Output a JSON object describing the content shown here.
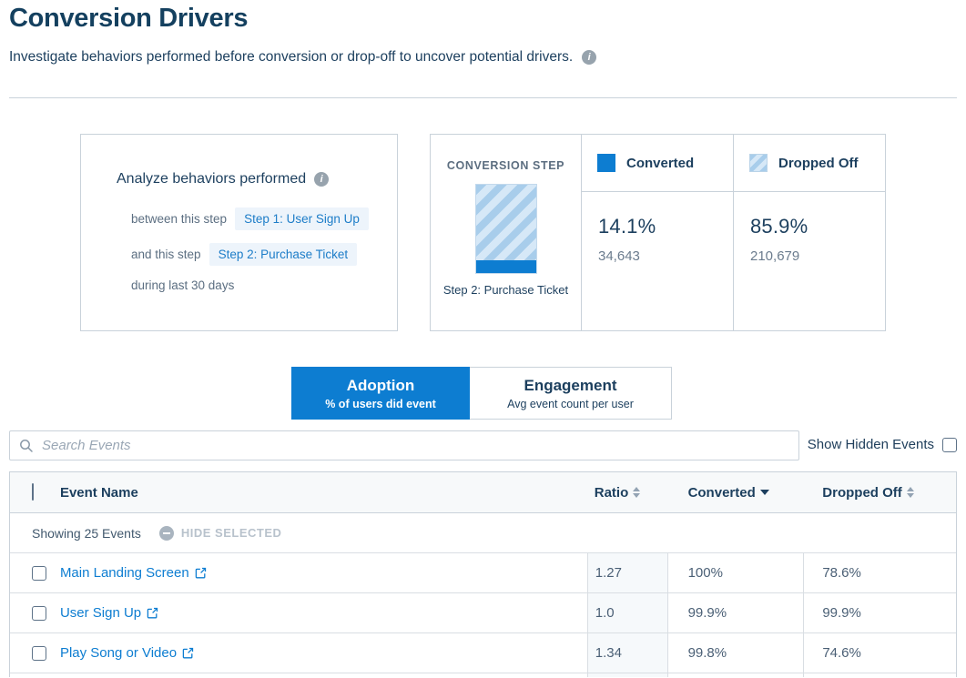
{
  "page": {
    "title": "Conversion Drivers",
    "subtitle": "Investigate behaviors performed before conversion or drop-off to uncover potential drivers."
  },
  "analyze_panel": {
    "title": "Analyze behaviors performed",
    "between_label": "between this step",
    "step1_pill": "Step 1: User Sign Up",
    "and_label": "and this step",
    "step2_pill": "Step 2: Purchase Ticket",
    "during_label": "during last 30 days"
  },
  "conversion_panel": {
    "header": "CONVERSION STEP",
    "step_label": "Step 2: Purchase Ticket",
    "converted": {
      "label": "Converted",
      "percent": "14.1%",
      "count": "34,643",
      "percent_value": 14.1
    },
    "dropped": {
      "label": "Dropped Off",
      "percent": "85.9%",
      "count": "210,679",
      "percent_value": 85.9
    }
  },
  "tabs": {
    "adoption": {
      "label": "Adoption",
      "sublabel": "% of users did event"
    },
    "engagement": {
      "label": "Engagement",
      "sublabel": "Avg event count per user"
    }
  },
  "search": {
    "placeholder": "Search Events"
  },
  "show_hidden": {
    "label": "Show Hidden Events",
    "checked": false
  },
  "table": {
    "columns": {
      "event": "Event Name",
      "ratio": "Ratio",
      "converted": "Converted",
      "dropped": "Dropped Off"
    },
    "sorted_by": "Converted",
    "showing_text": "Showing 25 Events",
    "hide_selected_label": "HIDE SELECTED",
    "rows": [
      {
        "name": "Main Landing Screen",
        "ratio": "1.27",
        "converted": "100%",
        "dropped": "78.6%"
      },
      {
        "name": "User Sign Up",
        "ratio": "1.0",
        "converted": "99.9%",
        "dropped": "99.9%"
      },
      {
        "name": "Play Song or Video",
        "ratio": "1.34",
        "converted": "99.8%",
        "dropped": "74.6%"
      }
    ]
  },
  "colors": {
    "accent_blue": "#0d7dd1",
    "dark_navy": "#1c3f5e",
    "stripe_light": "#d6e8f7",
    "stripe_dark": "#a8cdeb",
    "border": "#c9d2da"
  }
}
